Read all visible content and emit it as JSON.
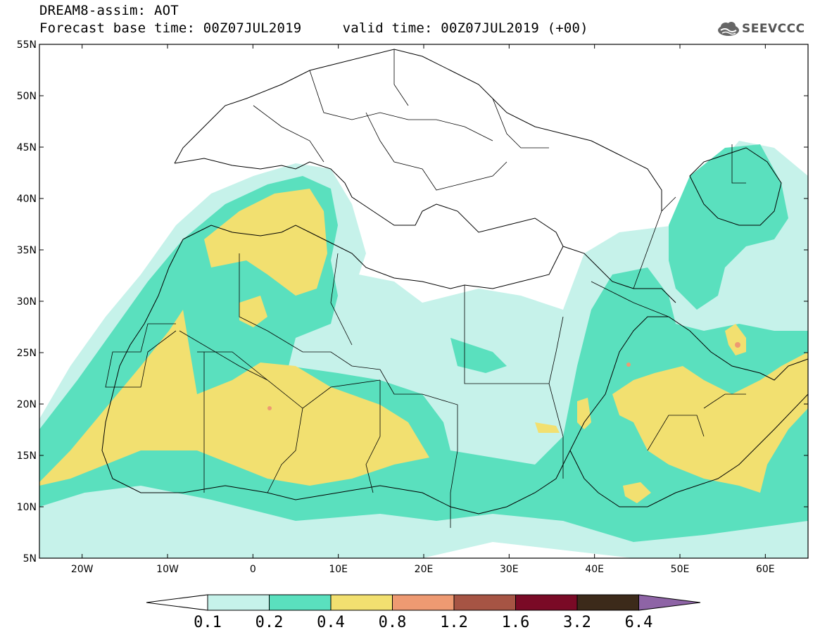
{
  "header": {
    "title": "DREAM8-assim: AOT",
    "subtitle": "Forecast base time: 00Z07JUL2019     valid time: 00Z07JUL2019 (+00)"
  },
  "logo": {
    "text": "SEEVCCC",
    "icon": "cloud-logo-icon"
  },
  "map": {
    "lon_range": [
      -25,
      65
    ],
    "lat_range": [
      5,
      55
    ],
    "lon_ticks": [
      {
        "value": -20,
        "label": "20W"
      },
      {
        "value": -10,
        "label": "10W"
      },
      {
        "value": 0,
        "label": "0"
      },
      {
        "value": 10,
        "label": "10E"
      },
      {
        "value": 20,
        "label": "20E"
      },
      {
        "value": 30,
        "label": "30E"
      },
      {
        "value": 40,
        "label": "40E"
      },
      {
        "value": 50,
        "label": "50E"
      },
      {
        "value": 60,
        "label": "60E"
      }
    ],
    "lat_ticks": [
      {
        "value": 55,
        "label": "55N"
      },
      {
        "value": 50,
        "label": "50N"
      },
      {
        "value": 45,
        "label": "45N"
      },
      {
        "value": 40,
        "label": "40N"
      },
      {
        "value": 35,
        "label": "35N"
      },
      {
        "value": 30,
        "label": "30N"
      },
      {
        "value": 25,
        "label": "25N"
      },
      {
        "value": 20,
        "label": "20N"
      },
      {
        "value": 15,
        "label": "15N"
      },
      {
        "value": 10,
        "label": "10N"
      },
      {
        "value": 5,
        "label": "5N"
      }
    ],
    "colors": {
      "aot_0_1": "#c6f2ea",
      "aot_0_2": "#5ae0be",
      "aot_0_4": "#f2e070",
      "aot_0_8": "#ee9a72"
    }
  },
  "colorbar": {
    "levels": [
      "0.1",
      "0.2",
      "0.4",
      "0.8",
      "1.2",
      "1.6",
      "3.2",
      "6.4"
    ],
    "colors": [
      "#ffffff",
      "#c6f2ea",
      "#5ae0be",
      "#f2e070",
      "#ee9a72",
      "#a65444",
      "#7a0a26",
      "#3c2a1a",
      "#8e64a6"
    ]
  }
}
